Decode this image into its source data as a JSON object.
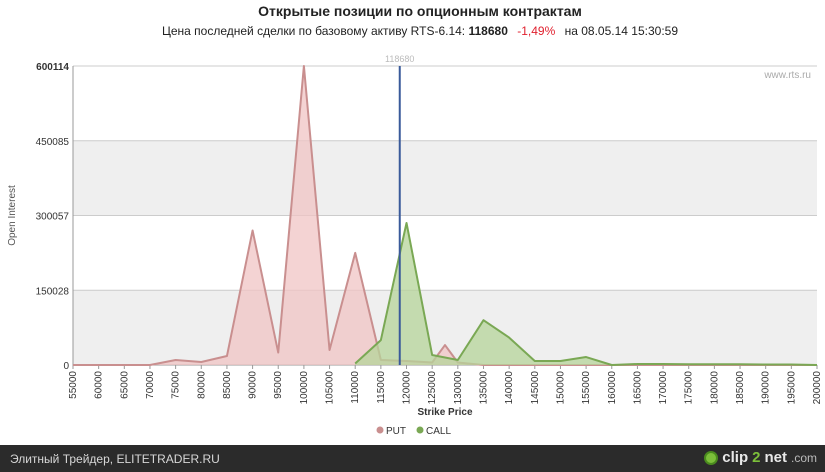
{
  "header": {
    "title": "Открытые позиции по опционным контрактам",
    "subtitle_prefix": "Цена последней сделки по базовому активу RTS-6.14:",
    "last_price": "118680",
    "change": "-1,49%",
    "date_prefix": "на",
    "datetime": "08.05.14 15:30:59"
  },
  "chart_data": {
    "type": "area",
    "ylabel": "Open Interest",
    "xlabel": "Strike Price",
    "watermark": "www.rts.ru",
    "ylim": [
      0,
      600114
    ],
    "xlim": [
      55000,
      200000
    ],
    "y_ticks": [
      0,
      150028,
      300057,
      450085,
      600114
    ],
    "y_tick_labels": [
      "0",
      "150028",
      "300057",
      "450085",
      "600114"
    ],
    "x_ticks": [
      55000,
      60000,
      65000,
      70000,
      75000,
      80000,
      85000,
      90000,
      95000,
      100000,
      105000,
      110000,
      115000,
      120000,
      125000,
      130000,
      135000,
      140000,
      145000,
      150000,
      155000,
      160000,
      165000,
      170000,
      175000,
      180000,
      185000,
      190000,
      195000,
      200000
    ],
    "reference_line": {
      "value": 118680,
      "label": "118680",
      "color": "#3a5a9a"
    },
    "grid": true,
    "legend": "bottom-center",
    "series": [
      {
        "name": "PUT",
        "color": "#c98f8f",
        "fill": "#f0c4c4",
        "points": [
          [
            55000,
            0
          ],
          [
            60000,
            0
          ],
          [
            65000,
            0
          ],
          [
            70000,
            0
          ],
          [
            75000,
            10000
          ],
          [
            80000,
            6000
          ],
          [
            85000,
            18000
          ],
          [
            90000,
            270000
          ],
          [
            95000,
            25000
          ],
          [
            100000,
            600114
          ],
          [
            105000,
            30000
          ],
          [
            110000,
            225000
          ],
          [
            115000,
            10000
          ],
          [
            120000,
            8000
          ],
          [
            125000,
            5000
          ],
          [
            127500,
            40000
          ],
          [
            130000,
            5000
          ],
          [
            135000,
            0
          ],
          [
            140000,
            0
          ],
          [
            145000,
            0
          ],
          [
            150000,
            0
          ],
          [
            155000,
            0
          ],
          [
            160000,
            0
          ],
          [
            165000,
            0
          ],
          [
            170000,
            0
          ],
          [
            175000,
            0
          ],
          [
            180000,
            0
          ],
          [
            185000,
            0
          ],
          [
            190000,
            0
          ],
          [
            195000,
            0
          ],
          [
            200000,
            0
          ]
        ]
      },
      {
        "name": "CALL",
        "color": "#7aa854",
        "fill": "#b6d49a",
        "points": [
          [
            110000,
            3000
          ],
          [
            115000,
            50000
          ],
          [
            120000,
            285000
          ],
          [
            125000,
            20000
          ],
          [
            130000,
            10000
          ],
          [
            135000,
            90000
          ],
          [
            140000,
            55000
          ],
          [
            145000,
            8000
          ],
          [
            150000,
            8000
          ],
          [
            155000,
            16000
          ],
          [
            160000,
            0
          ],
          [
            165000,
            2000
          ],
          [
            170000,
            2000
          ],
          [
            175000,
            1500
          ],
          [
            180000,
            1500
          ],
          [
            185000,
            1500
          ],
          [
            190000,
            1000
          ],
          [
            195000,
            1000
          ],
          [
            200000,
            0
          ]
        ]
      }
    ]
  },
  "footer": {
    "left_text": "Элитный Трейдер, ELITETRADER.RU",
    "brand_prefix": "clip",
    "brand_two": "2",
    "brand_suffix": "net",
    "brand_tld": ".com"
  }
}
